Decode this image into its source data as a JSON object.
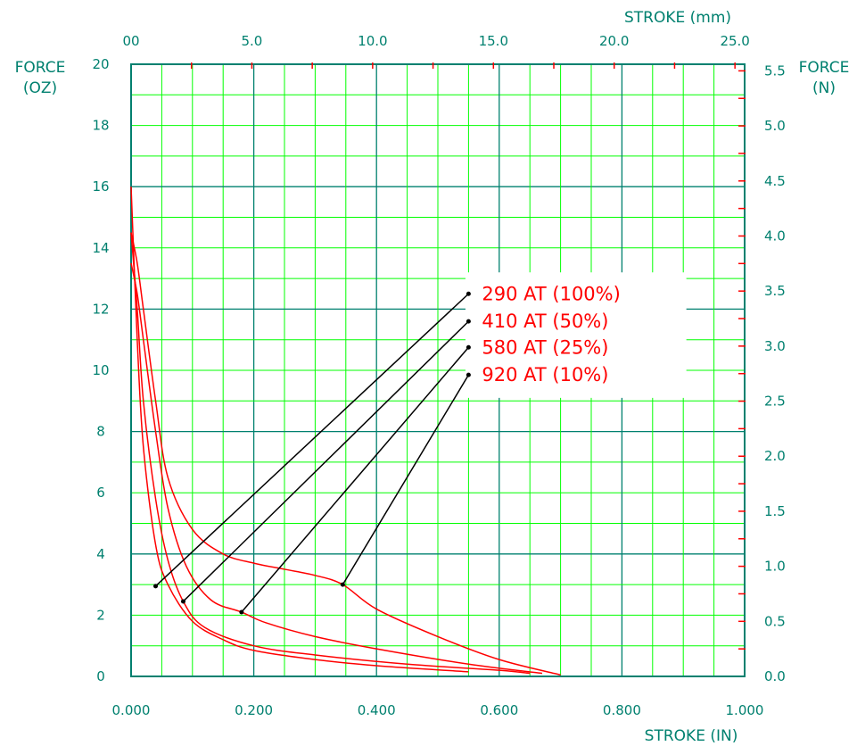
{
  "chart_data": {
    "type": "line",
    "title": "",
    "xlabel_bottom": "STROKE (IN)",
    "xlabel_top": "STROKE (mm)",
    "ylabel_left": [
      "FORCE",
      "(OZ)"
    ],
    "ylabel_right": [
      "FORCE",
      "(N)"
    ],
    "xlim": [
      0,
      1.0
    ],
    "ylim": [
      0,
      20
    ],
    "xlim_top_mm": [
      0,
      25.4
    ],
    "ylim_right_n": [
      0,
      5.56
    ],
    "x_ticks_bottom": [
      "0.000",
      "0.200",
      "0.400",
      "0.600",
      "0.800",
      "1.000"
    ],
    "x_ticks_top": [
      "00",
      "5.0",
      "10.0",
      "15.0",
      "20.0",
      "25.0"
    ],
    "y_ticks_left": [
      "0",
      "2",
      "4",
      "6",
      "8",
      "10",
      "12",
      "14",
      "16",
      "18",
      "20"
    ],
    "y_ticks_right": [
      "0.0",
      "0.5",
      "1.0",
      "1.5",
      "2.0",
      "2.5",
      "3.0",
      "3.5",
      "4.0",
      "4.5",
      "5.0",
      "5.5"
    ],
    "grid": true,
    "legend_position": "center-right",
    "series": [
      {
        "name": "290 AT (100%)",
        "x": [
          0.0,
          0.01,
          0.02,
          0.04,
          0.06,
          0.1,
          0.15,
          0.2,
          0.3,
          0.4,
          0.55
        ],
        "y": [
          16.0,
          11.0,
          7.5,
          4.3,
          3.0,
          1.8,
          1.2,
          0.85,
          0.55,
          0.35,
          0.15
        ]
      },
      {
        "name": "410 AT (50%)",
        "x": [
          0.0,
          0.01,
          0.02,
          0.04,
          0.06,
          0.085,
          0.12,
          0.2,
          0.3,
          0.45,
          0.6,
          0.65
        ],
        "y": [
          14.5,
          12.0,
          9.0,
          5.8,
          3.8,
          2.45,
          1.6,
          1.0,
          0.7,
          0.4,
          0.2,
          0.1
        ]
      },
      {
        "name": "580 AT (25%)",
        "x": [
          0.0,
          0.01,
          0.02,
          0.04,
          0.06,
          0.09,
          0.13,
          0.18,
          0.22,
          0.3,
          0.4,
          0.55,
          0.67
        ],
        "y": [
          13.5,
          12.5,
          11.0,
          8.0,
          5.5,
          3.6,
          2.5,
          2.1,
          1.75,
          1.3,
          0.9,
          0.4,
          0.1
        ]
      },
      {
        "name": "920 AT (10%)",
        "x": [
          0.0,
          0.01,
          0.02,
          0.04,
          0.06,
          0.1,
          0.15,
          0.2,
          0.25,
          0.3,
          0.345,
          0.4,
          0.5,
          0.6,
          0.7
        ],
        "y": [
          14.5,
          13.5,
          12.0,
          9.0,
          6.5,
          4.8,
          4.0,
          3.7,
          3.5,
          3.3,
          3.0,
          2.2,
          1.3,
          0.55,
          0.05
        ]
      }
    ],
    "annotations": [
      {
        "text": "290 AT (100%)",
        "target": [
          0.04,
          2.95
        ],
        "label_anchor": [
          0.55,
          12.5
        ]
      },
      {
        "text": "410 AT (50%)",
        "target": [
          0.085,
          2.45
        ],
        "label_anchor": [
          0.55,
          11.6
        ]
      },
      {
        "text": "580 AT (25%)",
        "target": [
          0.18,
          2.1
        ],
        "label_anchor": [
          0.55,
          10.75
        ]
      },
      {
        "text": "920 AT (10%)",
        "target": [
          0.345,
          3.0
        ],
        "label_anchor": [
          0.55,
          9.85
        ]
      }
    ],
    "colors": {
      "grid": "#00ff00",
      "major_grid": "#00806f",
      "curves": "#ff0000",
      "leaders": "#000000",
      "labels": "#00806f",
      "legend_text": "#ff0000"
    }
  }
}
